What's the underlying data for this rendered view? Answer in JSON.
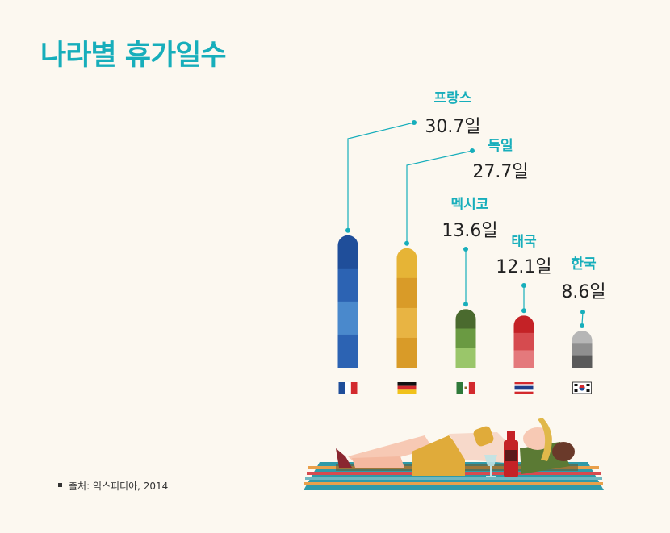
{
  "title": "나라별 휴가일수",
  "source": "출처: 익스피디아, 2014",
  "colors": {
    "accent": "#17aebb",
    "value_text": "#222222",
    "leader": "#17aebb"
  },
  "chart_data": {
    "type": "bar",
    "title": "나라별 휴가일수",
    "xlabel": "",
    "ylabel": "",
    "categories": [
      "프랑스",
      "독일",
      "멕시코",
      "태국",
      "한국"
    ],
    "values": [
      30.7,
      27.7,
      13.6,
      12.1,
      8.6
    ],
    "value_labels": [
      "30.7일",
      "27.7일",
      "13.6일",
      "12.1일",
      "8.6일"
    ],
    "flags": [
      "france-flag-icon",
      "germany-flag-icon",
      "mexico-flag-icon",
      "thailand-flag-icon",
      "korea-flag-icon"
    ],
    "bar_colors": [
      [
        "#1f4e9a",
        "#2c63b3",
        "#4a89cc",
        "#2c63b3"
      ],
      [
        "#e6b436",
        "#d99b28",
        "#e8b443",
        "#d99b28"
      ],
      [
        "#4a6a2e",
        "#6a9a42",
        "#9ac66a"
      ],
      [
        "#c42226",
        "#d64b4f",
        "#e4797c"
      ],
      [
        "#b6b6b6",
        "#8f8f8f",
        "#5a5a5a"
      ]
    ],
    "grid": false,
    "legend": "none"
  }
}
